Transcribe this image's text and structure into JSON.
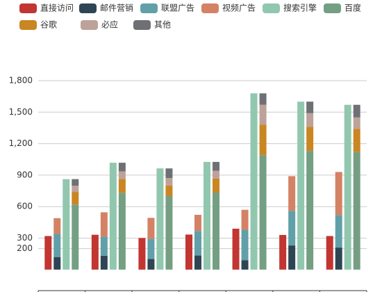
{
  "chart_data": {
    "type": "bar",
    "series": [
      {
        "name": "直接访问",
        "color": "#c23531",
        "values": [
          320,
          332,
          301,
          334,
          390,
          330,
          320
        ]
      },
      {
        "name": "邮件营销",
        "color": "#2f4554",
        "values": [
          120,
          132,
          101,
          134,
          90,
          230,
          210
        ]
      },
      {
        "name": "联盟广告",
        "color": "#61a0a8",
        "values": [
          220,
          182,
          191,
          234,
          290,
          330,
          310
        ]
      },
      {
        "name": "视频广告",
        "color": "#d48265",
        "values": [
          150,
          232,
          201,
          154,
          190,
          330,
          410
        ]
      },
      {
        "name": "搜索引擎",
        "color": "#91c7ae",
        "values": [
          862,
          1018,
          964,
          1026,
          1679,
          1600,
          1570
        ]
      },
      {
        "name": "百度",
        "color": "#749f83",
        "values": [
          620,
          732,
          701,
          734,
          1090,
          1130,
          1120
        ]
      },
      {
        "name": "谷歌",
        "color": "#ca8622",
        "values": [
          120,
          132,
          101,
          134,
          290,
          230,
          220
        ]
      },
      {
        "name": "必应",
        "color": "#bda29a",
        "values": [
          60,
          72,
          71,
          74,
          190,
          130,
          110
        ]
      },
      {
        "name": "其他",
        "color": "#6e7074",
        "values": [
          62,
          82,
          91,
          84,
          109,
          110,
          120
        ]
      }
    ],
    "stacks": [
      [
        0
      ],
      [
        1,
        2,
        3
      ],
      [
        4
      ],
      [
        5,
        6,
        7,
        8
      ]
    ],
    "ylim": [
      -200,
      1800
    ],
    "yticks": [
      200,
      300,
      600,
      900,
      {
        "value": 1200,
        "label": "1,200"
      },
      {
        "value": 1500,
        "label": "1,500"
      },
      {
        "value": 1800,
        "label": "1,800"
      }
    ],
    "grid": true
  }
}
